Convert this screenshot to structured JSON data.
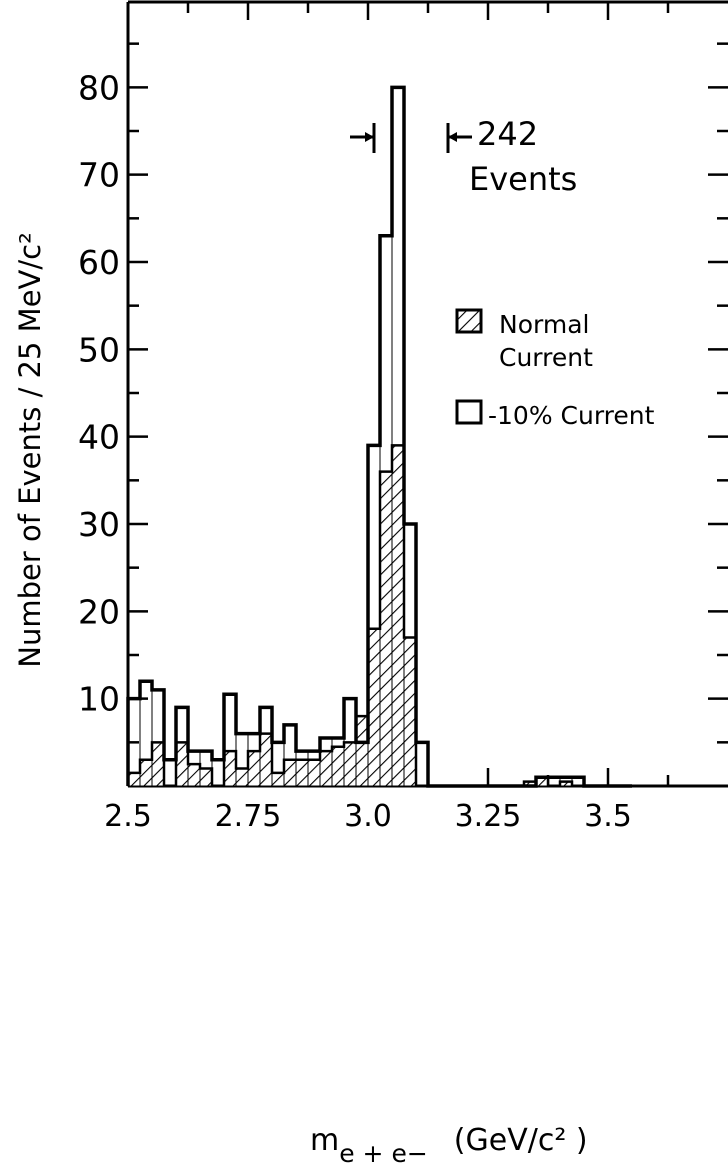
{
  "chart_data": {
    "type": "bar",
    "title": "",
    "xlabel": "m",
    "xlabel_sub": "e + e−",
    "xlabel_units": "(GeV/c² )",
    "ylabel": "Number of Events / 25 MeV/c²",
    "xlim": [
      2.5,
      3.75
    ],
    "ylim": [
      0,
      90
    ],
    "bin_width": 0.025,
    "x_ticks": [
      2.5,
      2.75,
      3.0,
      3.25,
      3.5
    ],
    "x_tick_labels": [
      "2.5",
      "2.75",
      "3.0",
      "3.25",
      "3.5"
    ],
    "y_ticks": [
      10,
      20,
      30,
      40,
      50,
      60,
      70,
      80
    ],
    "y_tick_labels": [
      "10",
      "20",
      "30",
      "40",
      "50",
      "60",
      "70",
      "80"
    ],
    "series": [
      {
        "name": "-10% Current",
        "style": "open",
        "bins_start": [
          2.5,
          2.525,
          2.55,
          2.575,
          2.6,
          2.625,
          2.65,
          2.675,
          2.7,
          2.725,
          2.75,
          2.775,
          2.8,
          2.825,
          2.85,
          2.875,
          2.9,
          2.925,
          2.95,
          2.975,
          3.0,
          3.025,
          3.05,
          3.075,
          3.1,
          3.125,
          3.15,
          3.175,
          3.2,
          3.225,
          3.25,
          3.275,
          3.3,
          3.325,
          3.35,
          3.375,
          3.4,
          3.425,
          3.45,
          3.475,
          3.5,
          3.525
        ],
        "values": [
          10,
          12,
          11,
          3,
          9,
          4,
          4,
          3,
          10.5,
          6,
          6,
          9,
          5,
          7,
          4,
          4,
          5.5,
          5.5,
          10,
          5,
          39,
          63,
          80,
          30,
          5,
          0,
          0,
          0,
          0,
          0,
          0,
          0,
          0,
          0,
          1,
          1,
          1,
          1,
          0,
          0,
          0,
          0
        ]
      },
      {
        "name": "Normal Current",
        "style": "hatched",
        "bins_start": [
          2.5,
          2.525,
          2.55,
          2.575,
          2.6,
          2.625,
          2.65,
          2.675,
          2.7,
          2.725,
          2.75,
          2.775,
          2.8,
          2.825,
          2.85,
          2.875,
          2.9,
          2.925,
          2.95,
          2.975,
          3.0,
          3.025,
          3.05,
          3.075,
          3.1,
          3.125,
          3.15,
          3.175,
          3.2,
          3.225,
          3.25,
          3.275,
          3.3,
          3.325,
          3.35,
          3.375,
          3.4,
          3.425,
          3.45,
          3.475,
          3.5,
          3.525
        ],
        "values": [
          1.5,
          3,
          5,
          0,
          5,
          2.5,
          2,
          0,
          4,
          2,
          4,
          6,
          1.5,
          3,
          3,
          3,
          4,
          4.5,
          5,
          8,
          18,
          36,
          39,
          17,
          0,
          0,
          0,
          0,
          0,
          0,
          0,
          0,
          0,
          0.5,
          1,
          0,
          0.5,
          0,
          0,
          0,
          0,
          0
        ]
      }
    ],
    "annotation": {
      "text_line1": "242",
      "text_line2": "Events",
      "span_x": [
        3.0,
        3.15
      ]
    },
    "legend": {
      "placement": "right",
      "items": [
        {
          "label_line1": "Normal",
          "label_line2": "Current",
          "style": "hatched"
        },
        {
          "label_line1": "-10% Current",
          "label_line2": "",
          "style": "open"
        }
      ]
    },
    "grid": false
  }
}
